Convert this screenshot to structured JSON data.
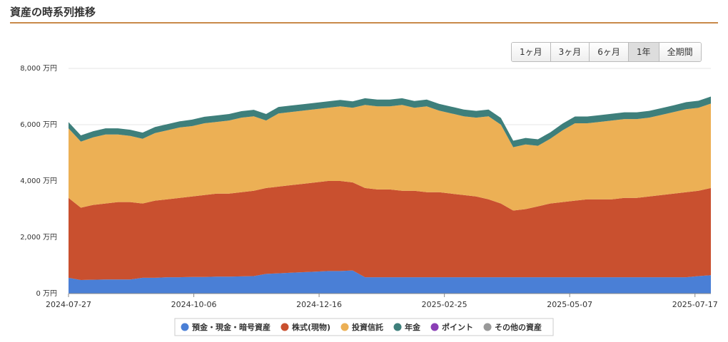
{
  "header": {
    "title": "資産の時系列推移"
  },
  "range_buttons": {
    "labels": [
      "1ヶ月",
      "3ヶ月",
      "6ヶ月",
      "1年",
      "全期間"
    ],
    "selected": 3
  },
  "chart_data": {
    "type": "area",
    "stacked": true,
    "x": [
      "2024-07-27",
      "2024-08-03",
      "2024-08-10",
      "2024-08-17",
      "2024-08-24",
      "2024-08-31",
      "2024-09-07",
      "2024-09-14",
      "2024-09-21",
      "2024-09-28",
      "2024-10-05",
      "2024-10-12",
      "2024-10-19",
      "2024-10-26",
      "2024-11-02",
      "2024-11-09",
      "2024-11-16",
      "2024-11-23",
      "2024-11-30",
      "2024-12-07",
      "2024-12-14",
      "2024-12-21",
      "2024-12-28",
      "2025-01-04",
      "2025-01-11",
      "2025-01-18",
      "2025-01-25",
      "2025-02-01",
      "2025-02-08",
      "2025-02-15",
      "2025-02-22",
      "2025-03-01",
      "2025-03-08",
      "2025-03-15",
      "2025-03-22",
      "2025-03-29",
      "2025-04-05",
      "2025-04-12",
      "2025-04-19",
      "2025-04-26",
      "2025-05-03",
      "2025-05-10",
      "2025-05-17",
      "2025-05-24",
      "2025-05-31",
      "2025-06-07",
      "2025-06-14",
      "2025-06-21",
      "2025-06-28",
      "2025-07-05",
      "2025-07-12",
      "2025-07-19",
      "2025-07-26"
    ],
    "series": [
      {
        "name": "預金・現金・暗号資産",
        "color": "#4a7fd6",
        "values": [
          560,
          480,
          490,
          500,
          500,
          500,
          560,
          560,
          580,
          580,
          590,
          590,
          600,
          600,
          610,
          620,
          700,
          720,
          740,
          760,
          780,
          800,
          800,
          820,
          580,
          580,
          580,
          580,
          580,
          580,
          580,
          580,
          580,
          580,
          580,
          580,
          580,
          580,
          580,
          580,
          580,
          580,
          580,
          580,
          580,
          580,
          580,
          580,
          580,
          580,
          580,
          620,
          650
        ]
      },
      {
        "name": "株式(現物)",
        "color": "#c9502f",
        "values": [
          2840,
          2570,
          2660,
          2700,
          2750,
          2750,
          2640,
          2740,
          2770,
          2820,
          2860,
          2910,
          2950,
          2950,
          2990,
          3030,
          3050,
          3080,
          3110,
          3140,
          3170,
          3200,
          3200,
          3130,
          3170,
          3120,
          3120,
          3070,
          3070,
          3020,
          3020,
          2970,
          2920,
          2870,
          2770,
          2620,
          2370,
          2420,
          2520,
          2620,
          2670,
          2720,
          2770,
          2770,
          2770,
          2820,
          2820,
          2870,
          2920,
          2970,
          3020,
          3030,
          3100
        ]
      },
      {
        "name": "投資信託",
        "color": "#ecb055",
        "values": [
          2470,
          2350,
          2400,
          2450,
          2400,
          2350,
          2300,
          2400,
          2450,
          2500,
          2500,
          2550,
          2550,
          2600,
          2650,
          2650,
          2400,
          2600,
          2600,
          2600,
          2600,
          2600,
          2650,
          2650,
          2950,
          2950,
          2950,
          3050,
          2950,
          3050,
          2900,
          2850,
          2800,
          2800,
          2950,
          2800,
          2250,
          2300,
          2150,
          2300,
          2550,
          2750,
          2700,
          2750,
          2800,
          2800,
          2800,
          2800,
          2850,
          2900,
          2950,
          2950,
          3000
        ]
      },
      {
        "name": "年金",
        "color": "#3e7f7b",
        "values": [
          220,
          220,
          220,
          220,
          220,
          220,
          220,
          220,
          220,
          220,
          230,
          230,
          230,
          230,
          230,
          230,
          230,
          230,
          230,
          230,
          230,
          230,
          230,
          230,
          240,
          240,
          240,
          240,
          240,
          240,
          240,
          240,
          240,
          240,
          240,
          240,
          230,
          230,
          230,
          230,
          240,
          240,
          240,
          240,
          240,
          240,
          240,
          240,
          240,
          240,
          250,
          250,
          250
        ]
      },
      {
        "name": "ポイント",
        "color": "#8a3fb5",
        "values": [
          0,
          0,
          0,
          0,
          0,
          0,
          0,
          0,
          0,
          0,
          0,
          0,
          0,
          0,
          0,
          0,
          0,
          0,
          0,
          0,
          0,
          0,
          0,
          0,
          0,
          0,
          0,
          0,
          0,
          0,
          0,
          0,
          0,
          0,
          0,
          0,
          0,
          0,
          0,
          0,
          0,
          0,
          0,
          0,
          0,
          0,
          0,
          0,
          0,
          0,
          0,
          0,
          0
        ]
      },
      {
        "name": "その他の資産",
        "color": "#999999",
        "values": [
          0,
          0,
          0,
          0,
          0,
          0,
          0,
          0,
          0,
          0,
          0,
          0,
          0,
          0,
          0,
          0,
          0,
          0,
          0,
          0,
          0,
          0,
          0,
          0,
          0,
          0,
          0,
          0,
          0,
          0,
          0,
          0,
          0,
          0,
          0,
          0,
          0,
          0,
          0,
          0,
          0,
          0,
          0,
          0,
          0,
          0,
          0,
          0,
          0,
          0,
          0,
          0,
          0
        ]
      }
    ],
    "xlim": [
      "2024-07-27",
      "2025-07-26"
    ],
    "xticks": [
      "2024-07-27",
      "2024-10-06",
      "2024-12-16",
      "2025-02-25",
      "2025-05-07",
      "2025-07-17"
    ],
    "ylim": [
      0,
      8000
    ],
    "yticks": [
      {
        "value": 0,
        "label": "0 万円"
      },
      {
        "value": 2000,
        "label": "2,000 万円"
      },
      {
        "value": 4000,
        "label": "4,000 万円"
      },
      {
        "value": 6000,
        "label": "6,000 万円"
      },
      {
        "value": 8000,
        "label": "8,000 万円"
      }
    ],
    "grid": true,
    "legend": "bottom"
  }
}
